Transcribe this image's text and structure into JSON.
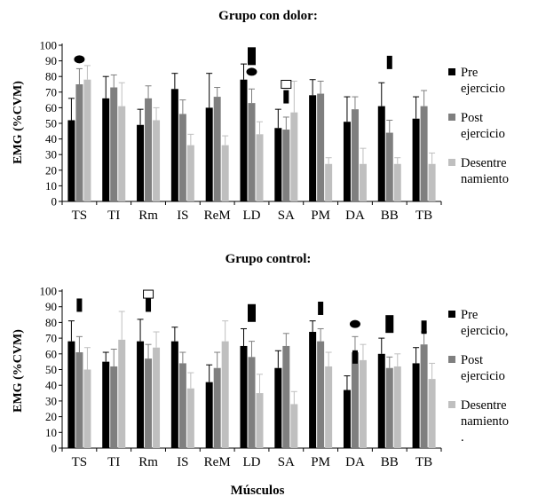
{
  "xlabel": "Músculos",
  "colors": {
    "pre": "#000000",
    "post": "#7f7f7f",
    "desent": "#bfbfbf"
  },
  "chart_data": [
    {
      "type": "bar",
      "title": "Grupo con dolor:",
      "ylabel": "EMG (%CVM)",
      "ylim": [
        0,
        100
      ],
      "yticks": [
        0,
        10,
        20,
        30,
        40,
        50,
        60,
        70,
        80,
        90,
        100
      ],
      "grid": false,
      "legend_position": "right",
      "categories": [
        "TS",
        "TI",
        "Rm",
        "IS",
        "ReM",
        "LD",
        "SA",
        "PM",
        "DA",
        "BB",
        "TB"
      ],
      "series": [
        {
          "name": "Pre ejercicio",
          "legend_lines": [
            "Pre",
            "ejercicio"
          ],
          "color": "#000000",
          "values": [
            52,
            66,
            49,
            72,
            60,
            78,
            47,
            68,
            51,
            61,
            53
          ],
          "errors": [
            14,
            14,
            10,
            10,
            22,
            10,
            12,
            10,
            16,
            15,
            14
          ]
        },
        {
          "name": "Post ejercicio",
          "legend_lines": [
            "Post",
            "ejercicio"
          ],
          "color": "#7f7f7f",
          "values": [
            75,
            73,
            66,
            56,
            67,
            63,
            46,
            69,
            59,
            44,
            61
          ],
          "errors": [
            10,
            8,
            8,
            9,
            6,
            9,
            8,
            8,
            8,
            8,
            10
          ]
        },
        {
          "name": "Desentrenamiento",
          "legend_lines": [
            "Desentre",
            "namiento"
          ],
          "color": "#bfbfbf",
          "values": [
            78,
            61,
            52,
            36,
            36,
            43,
            57,
            24,
            24,
            24,
            24
          ],
          "errors": [
            9,
            15,
            8,
            7,
            6,
            8,
            20,
            4,
            10,
            4,
            7
          ]
        }
      ],
      "markers": [
        {
          "category": "TS",
          "shape": "filled-ellipse",
          "y": 91
        },
        {
          "category": "LD",
          "shape": "filled-rect-tall",
          "y": 93
        },
        {
          "category": "LD",
          "shape": "filled-ellipse",
          "y": 83
        },
        {
          "category": "SA",
          "shape": "open-square",
          "y": 75
        },
        {
          "category": "SA",
          "shape": "filled-rect-small",
          "y": 67
        },
        {
          "category": "BB",
          "shape": "filled-rect-small",
          "y": 89
        }
      ]
    },
    {
      "type": "bar",
      "title": "Grupo control:",
      "ylabel": "EMG (%CVM)",
      "ylim": [
        0,
        100
      ],
      "yticks": [
        0,
        10,
        20,
        30,
        40,
        50,
        60,
        70,
        80,
        90,
        100
      ],
      "grid": false,
      "legend_position": "right",
      "categories": [
        "TS",
        "TI",
        "Rm",
        "IS",
        "ReM",
        "LD",
        "SA",
        "PM",
        "DA",
        "BB",
        "TB"
      ],
      "series": [
        {
          "name": "Pre ejercicio,",
          "legend_lines": [
            "Pre",
            "ejercicio,"
          ],
          "color": "#000000",
          "values": [
            68,
            55,
            68,
            68,
            42,
            65,
            51,
            74,
            37,
            60,
            54
          ],
          "errors": [
            13,
            6,
            14,
            9,
            11,
            11,
            11,
            7,
            9,
            10,
            10
          ]
        },
        {
          "name": "Post ejercicio",
          "legend_lines": [
            "Post",
            "ejercicio"
          ],
          "color": "#7f7f7f",
          "values": [
            61,
            52,
            57,
            54,
            51,
            58,
            65,
            68,
            61,
            51,
            66
          ],
          "errors": [
            10,
            11,
            9,
            7,
            10,
            10,
            8,
            8,
            10,
            7,
            8
          ]
        },
        {
          "name": "Desentrenamiento.",
          "legend_lines": [
            "Desentre",
            "namiento",
            "."
          ],
          "color": "#bfbfbf",
          "values": [
            50,
            69,
            64,
            38,
            68,
            35,
            28,
            52,
            56,
            52,
            44
          ],
          "errors": [
            14,
            18,
            10,
            10,
            13,
            12,
            8,
            9,
            10,
            8,
            10
          ]
        }
      ],
      "markers": [
        {
          "category": "TS",
          "shape": "filled-rect-small",
          "y": 91
        },
        {
          "category": "Rm",
          "shape": "open-square",
          "y": 98
        },
        {
          "category": "Rm",
          "shape": "filled-rect-small",
          "y": 91
        },
        {
          "category": "LD",
          "shape": "filled-rect-tall",
          "y": 86
        },
        {
          "category": "PM",
          "shape": "filled-rect-small",
          "y": 89
        },
        {
          "category": "DA",
          "shape": "filled-rect-small",
          "y": 58
        },
        {
          "category": "DA",
          "shape": "filled-ellipse",
          "y": 79
        },
        {
          "category": "BB",
          "shape": "filled-rect-tall",
          "y": 79
        },
        {
          "category": "TB",
          "shape": "filled-rect-small",
          "y": 77
        }
      ]
    }
  ]
}
